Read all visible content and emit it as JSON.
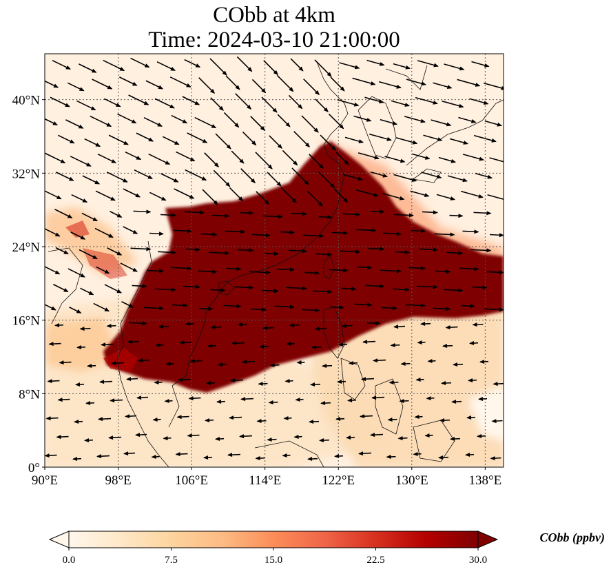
{
  "title": {
    "line1": "CObb at 4km",
    "line2": "Time: 2024-03-10 21:00:00"
  },
  "map": {
    "projection": "PlateCarree",
    "lon_range": [
      90,
      140
    ],
    "lat_range": [
      0,
      45
    ],
    "lon_ticks": [
      {
        "value": 90,
        "label": "90°E"
      },
      {
        "value": 98,
        "label": "98°E"
      },
      {
        "value": 106,
        "label": "106°E"
      },
      {
        "value": 114,
        "label": "114°E"
      },
      {
        "value": 122,
        "label": "122°E"
      },
      {
        "value": 130,
        "label": "130°E"
      },
      {
        "value": 138,
        "label": "138°E"
      }
    ],
    "lat_ticks": [
      {
        "value": 0,
        "label": "0°"
      },
      {
        "value": 8,
        "label": "8°N"
      },
      {
        "value": 16,
        "label": "16°N"
      },
      {
        "value": 24,
        "label": "24°N"
      },
      {
        "value": 32,
        "label": "32°N"
      },
      {
        "value": 40,
        "label": "40°N"
      }
    ],
    "gridlines": "dotted",
    "plume_color": "#7f0000",
    "background_color": "#fff0e0",
    "wind_vectors": "black arrows"
  },
  "colorbar": {
    "label": "CObb (ppbv)",
    "min": 0.0,
    "max": 30.0,
    "extend": "both",
    "colormap": "OrRd",
    "ticks": [
      "0.0",
      "7.5",
      "15.0",
      "22.5",
      "30.0"
    ],
    "colors": [
      "#fff7ec",
      "#fee8c8",
      "#fdd49e",
      "#fdbb84",
      "#fc8d59",
      "#ef6548",
      "#d7301f",
      "#b30000",
      "#7f0000"
    ]
  }
}
